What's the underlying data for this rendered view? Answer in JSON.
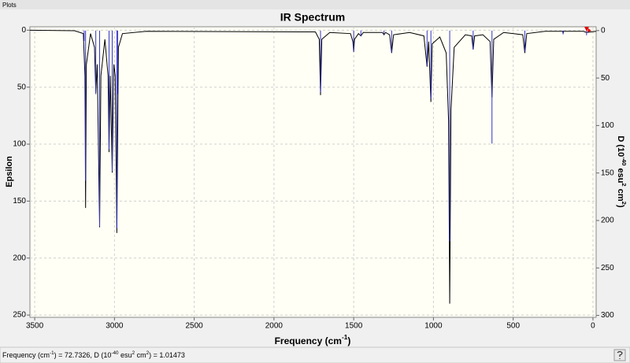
{
  "window": {
    "title": "Plots"
  },
  "status": [
    "Frequency (cm",
    "-1",
    ") = 72.7326, D (10",
    "-40",
    " esu",
    "2",
    " cm",
    "2",
    ") = 1.01473"
  ],
  "chart_data": {
    "type": "line",
    "title": "IR Spectrum",
    "x_label": [
      "Frequency (cm",
      "-1",
      ")"
    ],
    "y_label": "Epsilon",
    "y2_label": [
      "D (10",
      "-40",
      " esu",
      "2",
      " cm",
      "2",
      ")"
    ],
    "xlim": [
      3530,
      -20
    ],
    "xticks": [
      3500,
      3000,
      2500,
      2000,
      1500,
      1000,
      500,
      0
    ],
    "ylim": [
      -3,
      252
    ],
    "yticks": [
      0,
      50,
      100,
      150,
      200,
      250
    ],
    "y_direction": "down",
    "y2lim": [
      -4,
      302
    ],
    "y2ticks": [
      0,
      50,
      100,
      150,
      200,
      250,
      300
    ],
    "grid": true,
    "series": [
      {
        "color": "#000000",
        "x": [
          3530,
          3250,
          3195,
          3185,
          3181,
          3176,
          3150,
          3125,
          3117,
          3108,
          3093,
          3085,
          3060,
          3040,
          3034,
          3026,
          3014,
          3004,
          2995,
          2985,
          2975,
          2950,
          2800,
          1740,
          1716,
          1708,
          1700,
          1650,
          1520,
          1505,
          1500,
          1495,
          1470,
          1455,
          1440,
          1320,
          1310,
          1300,
          1275,
          1262,
          1250,
          1150,
          1060,
          1040,
          1030,
          1016,
          1008,
          960,
          920,
          905,
          898,
          890,
          870,
          800,
          760,
          751,
          742,
          690,
          645,
          633,
          622,
          560,
          440,
          427,
          415,
          300,
          190,
          187,
          184,
          60,
          40,
          -20
        ],
        "values": [
          0,
          0.5,
          3,
          40,
          156,
          30,
          3,
          15,
          55,
          30,
          173,
          40,
          8,
          40,
          107,
          40,
          125,
          30,
          40,
          178,
          15,
          3,
          1,
          1.5,
          8,
          57,
          8,
          2,
          3,
          10,
          19,
          8,
          3,
          5,
          2,
          2,
          4,
          2,
          4,
          20,
          4,
          2,
          5,
          32,
          10,
          63,
          12,
          6,
          20,
          80,
          240,
          70,
          15,
          4,
          5,
          17,
          5,
          4,
          10,
          59,
          8,
          2,
          4,
          20,
          3,
          1,
          1,
          3,
          1,
          1,
          2,
          1
        ]
      },
      {
        "color": "#3434c8",
        "axis": "y2",
        "x": [
          3190,
          3181,
          3117,
          3093,
          3034,
          3014,
          2985,
          2980,
          1708,
          1500,
          1455,
          1310,
          1262,
          1040,
          1016,
          898,
          751,
          633,
          427,
          187,
          40
        ],
        "values": [
          11,
          158,
          67,
          206,
          125,
          148,
          208,
          67,
          65,
          22,
          6,
          4,
          23,
          37,
          72,
          222,
          20,
          119,
          22,
          4,
          5
        ]
      }
    ]
  }
}
